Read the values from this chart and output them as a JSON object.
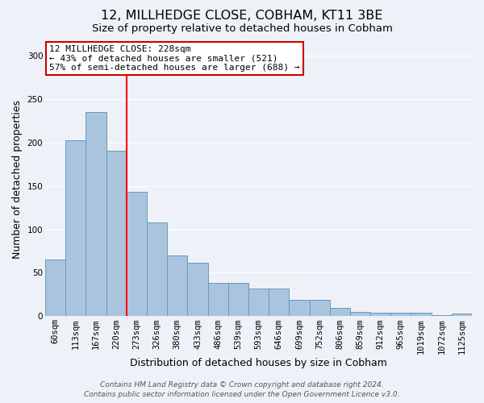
{
  "title": "12, MILLHEDGE CLOSE, COBHAM, KT11 3BE",
  "subtitle": "Size of property relative to detached houses in Cobham",
  "xlabel": "Distribution of detached houses by size in Cobham",
  "ylabel": "Number of detached properties",
  "categories": [
    "60sqm",
    "113sqm",
    "167sqm",
    "220sqm",
    "273sqm",
    "326sqm",
    "380sqm",
    "433sqm",
    "486sqm",
    "539sqm",
    "593sqm",
    "646sqm",
    "699sqm",
    "752sqm",
    "806sqm",
    "859sqm",
    "912sqm",
    "965sqm",
    "1019sqm",
    "1072sqm",
    "1125sqm"
  ],
  "values": [
    65,
    202,
    235,
    190,
    143,
    108,
    70,
    62,
    38,
    38,
    32,
    32,
    19,
    19,
    10,
    5,
    4,
    4,
    4,
    1,
    3
  ],
  "bar_color": "#aac4de",
  "bar_edge_color": "#6699bb",
  "red_line_x": 3.5,
  "ylim": [
    0,
    315
  ],
  "yticks": [
    0,
    50,
    100,
    150,
    200,
    250,
    300
  ],
  "annotation_text": "12 MILLHEDGE CLOSE: 228sqm\n← 43% of detached houses are smaller (521)\n57% of semi-detached houses are larger (688) →",
  "annotation_box_color": "#ffffff",
  "annotation_box_edge_color": "#cc0000",
  "footer_line1": "Contains HM Land Registry data © Crown copyright and database right 2024.",
  "footer_line2": "Contains public sector information licensed under the Open Government Licence v3.0.",
  "background_color": "#eef2f8",
  "grid_color": "#ffffff",
  "title_fontsize": 11.5,
  "subtitle_fontsize": 9.5,
  "axis_label_fontsize": 9,
  "tick_fontsize": 7.5,
  "footer_fontsize": 6.5,
  "annotation_fontsize": 8
}
